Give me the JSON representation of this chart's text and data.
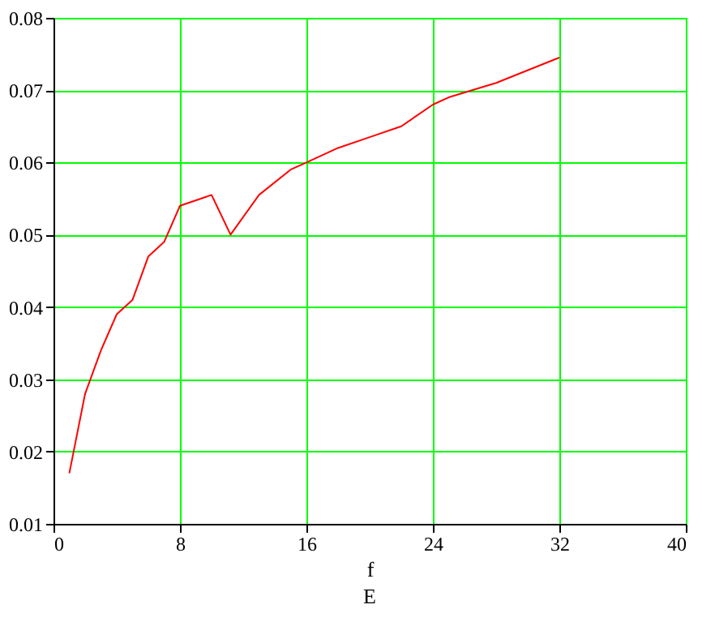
{
  "chart_data": {
    "type": "line",
    "xlabel": "f",
    "annotations": [
      "E"
    ],
    "x": [
      1,
      2,
      3,
      4,
      5,
      6,
      7,
      8,
      10,
      11.2,
      13,
      15,
      16,
      18,
      20,
      22,
      24,
      25,
      28,
      32
    ],
    "series": [
      {
        "color": "#ff0000",
        "values": [
          0.017,
          0.028,
          0.034,
          0.039,
          0.041,
          0.047,
          0.049,
          0.054,
          0.0555,
          0.05,
          0.0555,
          0.059,
          0.06,
          0.062,
          0.0635,
          0.065,
          0.068,
          0.069,
          0.071,
          0.0745
        ]
      }
    ],
    "xlim": [
      0,
      40
    ],
    "xticks": [
      0,
      8,
      16,
      24,
      32,
      40
    ],
    "ylim": [
      0.01,
      0.08
    ],
    "yticks": [
      0.01,
      0.02,
      0.03,
      0.04,
      0.05,
      0.06,
      0.07,
      0.08
    ],
    "grid": true,
    "line_style": "solid",
    "marker": "none"
  }
}
